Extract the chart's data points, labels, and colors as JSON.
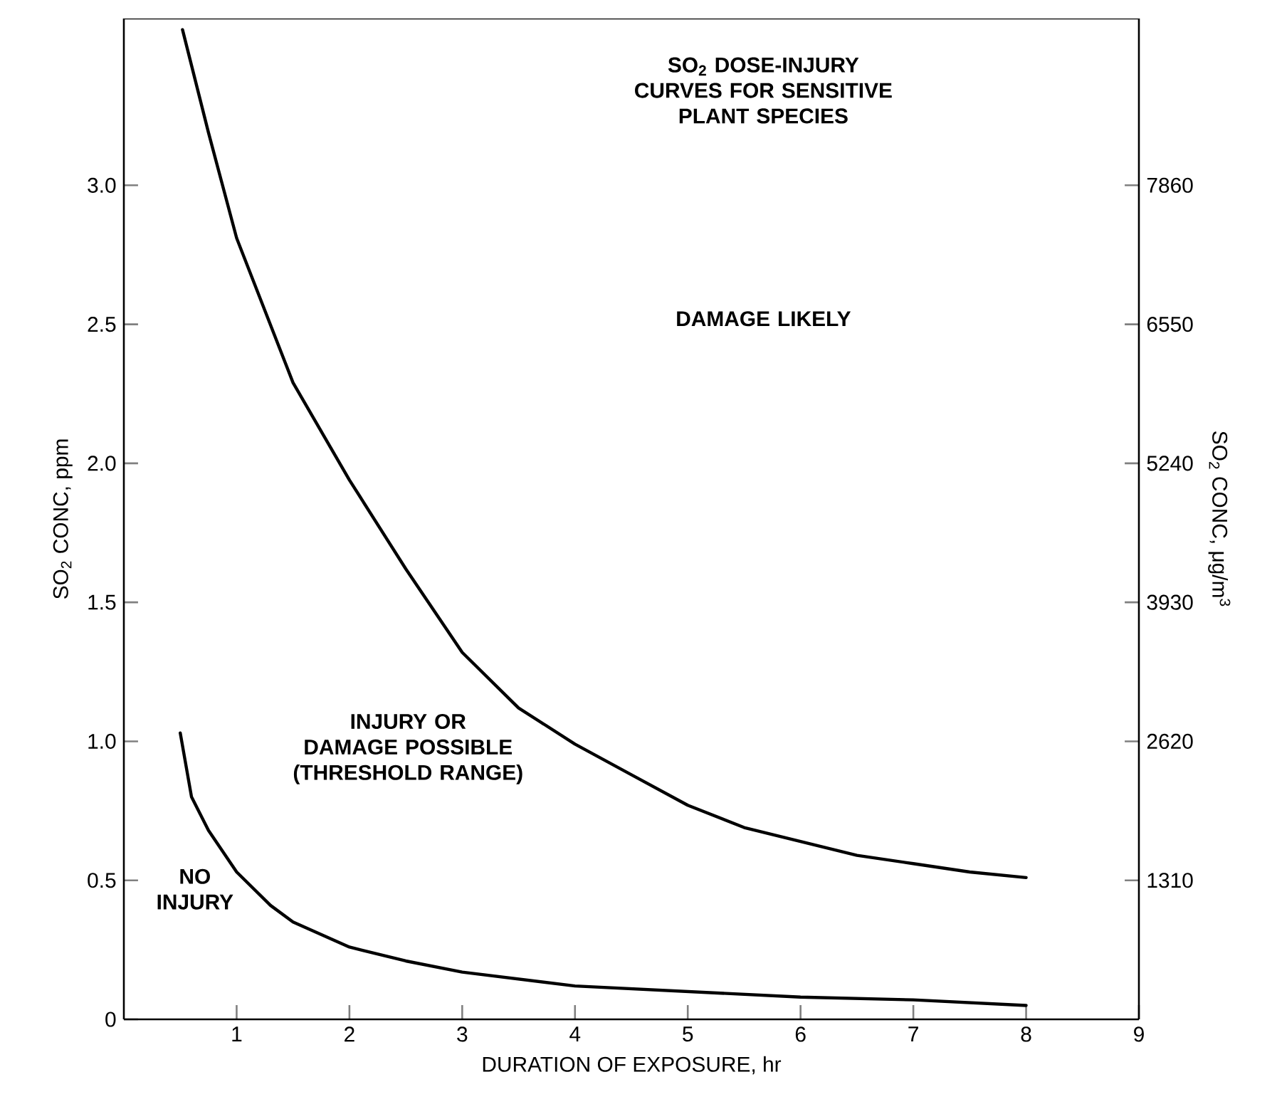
{
  "chart_data": {
    "type": "line",
    "title": "SO$_{2}$ DOSE-INJURY CURVES FOR SENSITIVE PLANT SPECIES",
    "xlabel": "DURATION OF EXPOSURE, hr",
    "ylabel": "SO$_{2}$ CONC, ppm",
    "y2label": "SO$_{2}$ CONC, μg/m$^{3}$",
    "annotations": [
      "DAMAGE LIKELY",
      "INJURY OR DAMAGE POSSIBLE (THRESHOLD RANGE)",
      "NO INJURY"
    ],
    "xlim": [
      0,
      9
    ],
    "xticks": [
      1,
      2,
      3,
      4,
      5,
      6,
      7,
      8,
      9
    ],
    "ylim": [
      0,
      3.6
    ],
    "yticks": [
      0,
      0.5,
      {
        "value": 1,
        "label": "1.0"
      },
      1.5,
      {
        "value": 2,
        "label": "2.0"
      },
      2.5,
      {
        "value": 3,
        "label": "3.0"
      }
    ],
    "y2lim": [
      0,
      9432
    ],
    "y2ticks": [
      1310,
      2620,
      3930,
      5240,
      6550,
      7860
    ],
    "marker": "none",
    "line_style": "solid",
    "series": [
      {
        "color": "#000000",
        "x": [
          0.52,
          0.75,
          1,
          1.5,
          2,
          2.5,
          3,
          3.5,
          4,
          4.5,
          5,
          5.5,
          6,
          6.5,
          7,
          7.5,
          8
        ],
        "values": [
          3.56,
          3.19,
          2.81,
          2.29,
          1.94,
          1.62,
          1.32,
          1.12,
          0.99,
          0.88,
          0.77,
          0.69,
          0.64,
          0.59,
          0.56,
          0.53,
          0.51
        ]
      },
      {
        "color": "#000000",
        "x": [
          0.5,
          0.6,
          0.75,
          1,
          1.3,
          1.5,
          2,
          2.5,
          3,
          4,
          5,
          6,
          7,
          8
        ],
        "values": [
          1.03,
          0.8,
          0.68,
          0.53,
          0.41,
          0.35,
          0.26,
          0.21,
          0.17,
          0.12,
          0.1,
          0.08,
          0.07,
          0.05
        ]
      }
    ]
  }
}
